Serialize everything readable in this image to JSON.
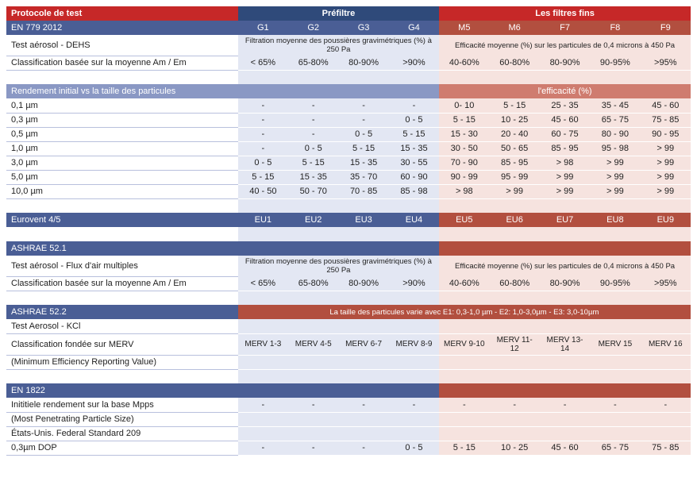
{
  "colors": {
    "header_red": "#c62828",
    "header_blue": "#2f4a7a",
    "pf_head": "#8a98c4",
    "pf_head_dark": "#4a5e95",
    "ff_head": "#cf7c6f",
    "ff_head_dark": "#b24f3f",
    "pf_cell": "#e3e7f3",
    "ff_cell": "#f6e3df"
  },
  "header": {
    "protocol": "Protocole de test",
    "prefilter": "Préfiltre",
    "finefilters": "Les filtres fins"
  },
  "en779": {
    "title": "EN 779 2012",
    "pf": [
      "G1",
      "G2",
      "G3",
      "G4"
    ],
    "ff": [
      "M5",
      "M6",
      "F7",
      "F8",
      "F9"
    ],
    "aerosol_label": "Test aérosol - DEHS",
    "pf_note": "Filtration moyenne des poussières gravimétriques (%) à 250 Pa",
    "ff_note": "Efficacité moyenne (%) sur les particules de 0,4 microns à 450 Pa",
    "class_label": "Classification basée sur la moyenne Am / Em",
    "class_pf": [
      "< 65%",
      "65-80%",
      "80-90%",
      ">90%"
    ],
    "class_ff": [
      "40-60%",
      "60-80%",
      "80-90%",
      "90-95%",
      ">95%"
    ]
  },
  "particles": {
    "title": "Rendement initial vs la taille des particules",
    "ff_note": "l'efficacité (%)",
    "rows": [
      {
        "label": "0,1 µm",
        "pf": [
          "-",
          "-",
          "-",
          "-"
        ],
        "ff": [
          "0- 10",
          "5 - 15",
          "25 - 35",
          "35 - 45",
          "45 - 60"
        ]
      },
      {
        "label": "0,3 µm",
        "pf": [
          "-",
          "-",
          "-",
          "0 - 5"
        ],
        "ff": [
          "5 - 15",
          "10 - 25",
          "45 - 60",
          "65 - 75",
          "75 - 85"
        ]
      },
      {
        "label": "0,5 µm",
        "pf": [
          "-",
          "-",
          "0 - 5",
          "5 - 15"
        ],
        "ff": [
          "15 - 30",
          "20 - 40",
          "60 - 75",
          "80 - 90",
          "90 - 95"
        ]
      },
      {
        "label": "1,0 µm",
        "pf": [
          "-",
          "0 - 5",
          "5 - 15",
          "15 - 35"
        ],
        "ff": [
          "30 - 50",
          "50 - 65",
          "85 - 95",
          "95 - 98",
          "> 99"
        ]
      },
      {
        "label": "3,0 µm",
        "pf": [
          "0 - 5",
          "5 - 15",
          "15 - 35",
          "30 - 55"
        ],
        "ff": [
          "70 - 90",
          "85 - 95",
          "> 98",
          "> 99",
          "> 99"
        ]
      },
      {
        "label": "5,0 µm",
        "pf": [
          "5 - 15",
          "15 - 35",
          "35 - 70",
          "60 - 90"
        ],
        "ff": [
          "90 - 99",
          "95 - 99",
          "> 99",
          "> 99",
          "> 99"
        ]
      },
      {
        "label": "10,0 µm",
        "pf": [
          "40 - 50",
          "50 - 70",
          "70 - 85",
          "85 - 98"
        ],
        "ff": [
          "> 98",
          "> 99",
          "> 99",
          "> 99",
          "> 99"
        ]
      }
    ]
  },
  "eurovent": {
    "title": "Eurovent 4/5",
    "pf": [
      "EU1",
      "EU2",
      "EU3",
      "EU4"
    ],
    "ff": [
      "EU5",
      "EU6",
      "EU7",
      "EU8",
      "EU9"
    ]
  },
  "ashrae521": {
    "title": "ASHRAE 52.1",
    "aerosol_label": "Test aérosol - Flux d'air multiples",
    "pf_note": "Filtration moyenne des poussières gravimétriques (%) à 250 Pa",
    "ff_note": "Efficacité moyenne (%) sur les particules de 0,4 microns à 450 Pa",
    "class_label": "Classification basée sur la moyenne Am / Em",
    "class_pf": [
      "< 65%",
      "65-80%",
      "80-90%",
      ">90%"
    ],
    "class_ff": [
      "40-60%",
      "60-80%",
      "80-90%",
      "90-95%",
      ">95%"
    ]
  },
  "ashrae522": {
    "title": "ASHRAE 52.2",
    "band_note": "La taille des particules varie avec E1: 0,3-1,0 µm - E2: 1,0-3,0µm - E3: 3,0-10µm",
    "aerosol_label": "Test Aerosol - KCl",
    "class_label": "Classification fondée sur MERV",
    "sub_label": "(Minimum Efficiency Reporting Value)",
    "pf": [
      "MERV 1-3",
      "MERV 4-5",
      "MERV 6-7",
      "MERV 8-9"
    ],
    "ff": [
      "MERV 9-10",
      "MERV 11-12",
      "MERV 13-14",
      "MERV 15",
      "MERV 16"
    ]
  },
  "en1822": {
    "title": "EN 1822",
    "row1_label": "Inititiele rendement sur la base Mpps",
    "row1_sub": "(Most Penetrating Particle Size)",
    "row1_pf": [
      "-",
      "-",
      "-",
      "-"
    ],
    "row1_ff": [
      "-",
      "-",
      "-",
      "-",
      "-"
    ],
    "row2_label": "États-Unis. Federal Standard 209",
    "row3_label": "0,3µm DOP",
    "row3_pf": [
      "-",
      "-",
      "-",
      "0 - 5"
    ],
    "row3_ff": [
      "5 - 15",
      "10 - 25",
      "45 - 60",
      "65 - 75",
      "75 - 85"
    ]
  }
}
